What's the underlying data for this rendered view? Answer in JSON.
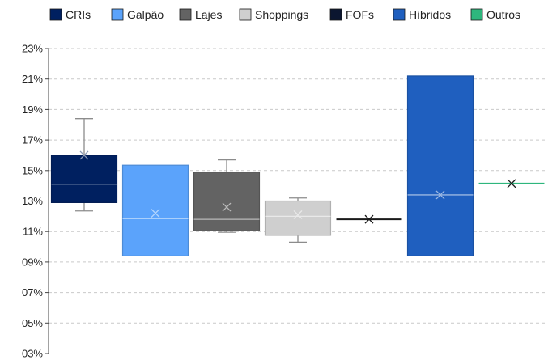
{
  "chart_data": {
    "type": "box",
    "legend_position": "top",
    "grid": true,
    "ylim": [
      3,
      23
    ],
    "y_ticks": [
      {
        "value": 23,
        "label": "23%"
      },
      {
        "value": 21,
        "label": "21%"
      },
      {
        "value": 19,
        "label": "19%"
      },
      {
        "value": 17,
        "label": "17%"
      },
      {
        "value": 15,
        "label": "15%"
      },
      {
        "value": 13,
        "label": "13%"
      },
      {
        "value": 11,
        "label": "11%"
      },
      {
        "value": 9,
        "label": "09%"
      },
      {
        "value": 7,
        "label": "07%"
      },
      {
        "value": 5,
        "label": "05%"
      },
      {
        "value": 3,
        "label": "03%"
      }
    ],
    "series": [
      {
        "name": "CRIs",
        "color": "#002060",
        "min": 12.35,
        "q1": 12.9,
        "median": 14.1,
        "q3": 16.0,
        "max": 18.4,
        "mean": 16.0
      },
      {
        "name": "Galpão",
        "color": "#5BA3FB",
        "min": 9.4,
        "q1": 9.4,
        "median": 11.85,
        "q3": 15.35,
        "max": 15.35,
        "mean": 12.2
      },
      {
        "name": "Lajes",
        "color": "#636363",
        "min": 10.95,
        "q1": 11.05,
        "median": 11.8,
        "q3": 14.9,
        "max": 15.7,
        "mean": 12.6
      },
      {
        "name": "Shoppings",
        "color": "#CFCFCF",
        "min": 10.3,
        "q1": 10.75,
        "median": 12.0,
        "q3": 13.0,
        "max": 13.2,
        "mean": 12.1
      },
      {
        "name": "FOFs",
        "color": "#0B1630",
        "min": 11.8,
        "q1": 11.8,
        "median": 11.8,
        "q3": 11.8,
        "max": 11.8,
        "mean": 11.8
      },
      {
        "name": "Híbridos",
        "color": "#1F5FBF",
        "min": 9.4,
        "q1": 9.4,
        "median": 13.4,
        "q3": 21.2,
        "max": 21.2,
        "mean": 13.4
      },
      {
        "name": "Outros",
        "color": "#2EB67D",
        "min": 14.15,
        "q1": 14.15,
        "median": 14.15,
        "q3": 14.15,
        "max": 14.15,
        "mean": 14.15
      }
    ]
  }
}
